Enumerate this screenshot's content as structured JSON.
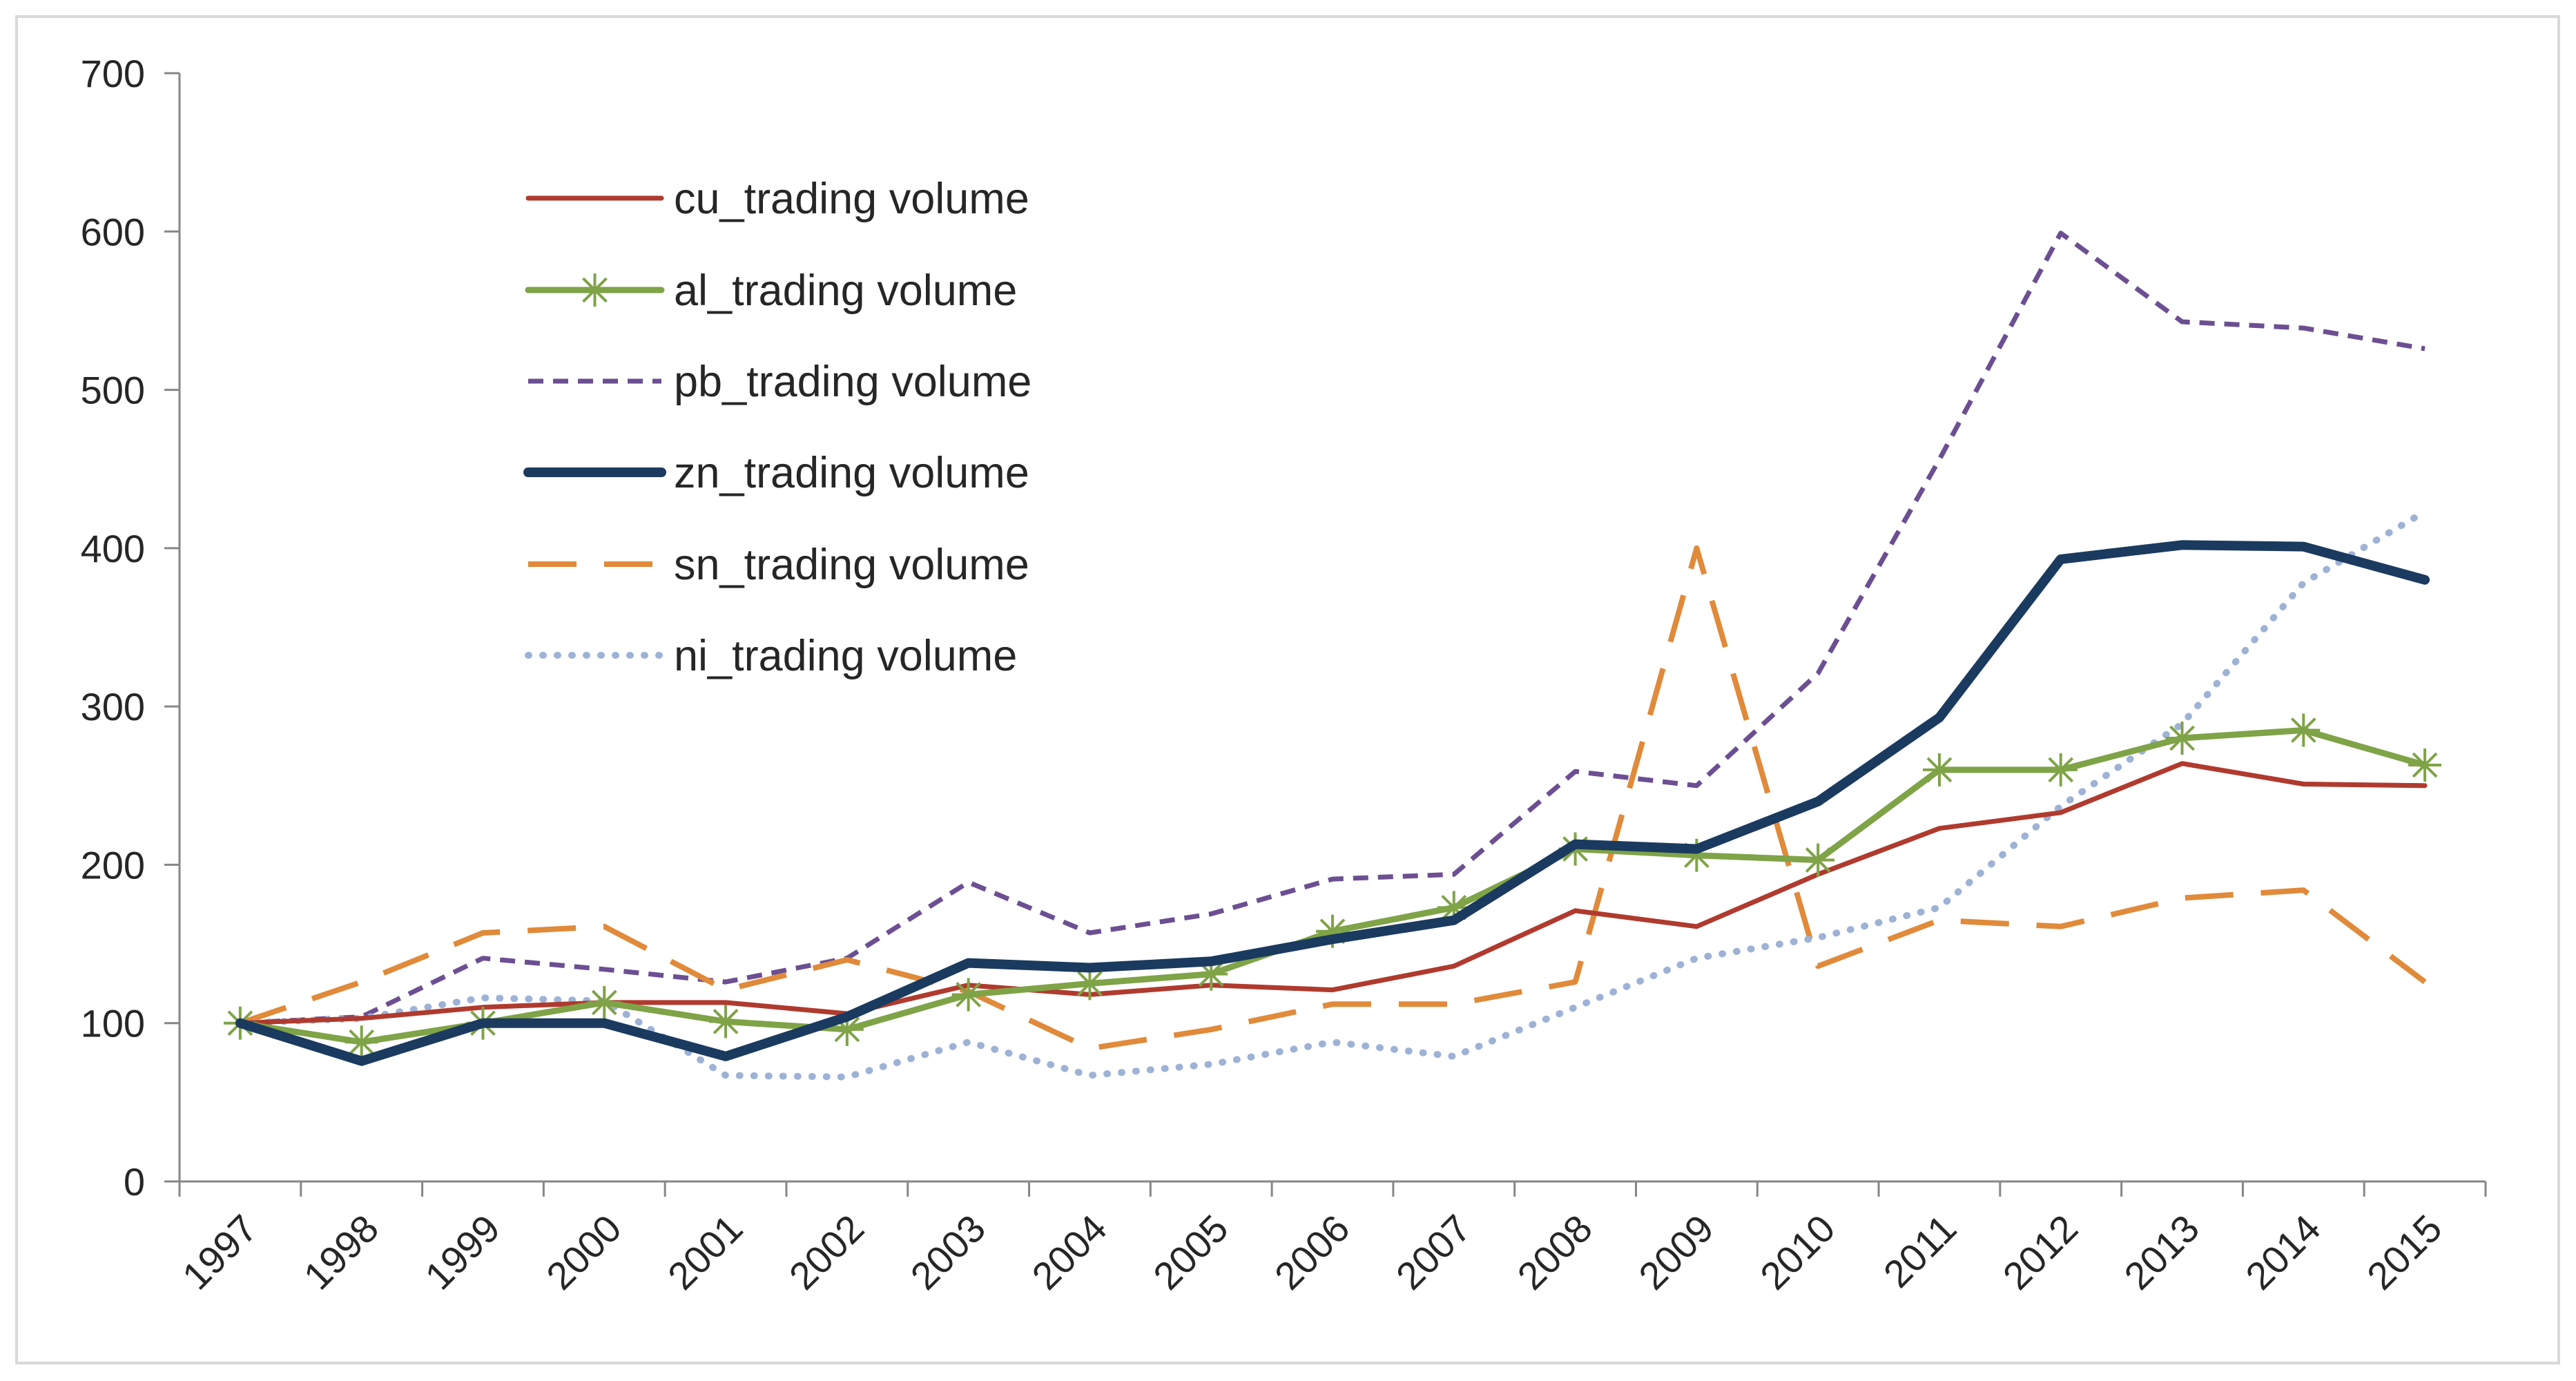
{
  "chart_data": {
    "type": "line",
    "title": "",
    "xlabel": "",
    "ylabel": "",
    "ylim": [
      0,
      700
    ],
    "yticks": [
      0,
      100,
      200,
      300,
      400,
      500,
      600,
      700
    ],
    "categories": [
      "1997",
      "1998",
      "1999",
      "2000",
      "2001",
      "2002",
      "2003",
      "2004",
      "2005",
      "2006",
      "2007",
      "2008",
      "2009",
      "2010",
      "2011",
      "2012",
      "2013",
      "2014",
      "2015"
    ],
    "grid": false,
    "legend_position": "top-left",
    "series": [
      {
        "name": "cu_trading volume",
        "color": "#b03a2e",
        "style": "solid",
        "values": [
          100,
          103,
          110,
          113,
          113,
          106,
          124,
          118,
          124,
          121,
          136,
          171,
          161,
          194,
          223,
          233,
          264,
          251,
          250
        ]
      },
      {
        "name": "al_trading volume",
        "color": "#7fa347",
        "style": "solid-star",
        "values": [
          100,
          88,
          100,
          113,
          101,
          96,
          118,
          125,
          131,
          158,
          173,
          210,
          206,
          203,
          260,
          260,
          280,
          285,
          263
        ]
      },
      {
        "name": "pb_trading volume",
        "color": "#6c4f92",
        "style": "dash-short",
        "values": [
          100,
          104,
          141,
          134,
          126,
          141,
          189,
          157,
          169,
          191,
          194,
          259,
          250,
          321,
          456,
          599,
          543,
          539,
          526
        ]
      },
      {
        "name": "zn_trading volume",
        "color": "#1b3a5f",
        "style": "solid-thick",
        "values": [
          100,
          76,
          100,
          100,
          79,
          104,
          138,
          135,
          139,
          153,
          165,
          213,
          210,
          240,
          293,
          393,
          402,
          401,
          380
        ]
      },
      {
        "name": "sn_trading volume",
        "color": "#e08a3a",
        "style": "dash-long",
        "values": [
          100,
          126,
          157,
          161,
          121,
          140,
          120,
          84,
          96,
          112,
          112,
          126,
          400,
          136,
          165,
          161,
          179,
          184,
          126
        ]
      },
      {
        "name": "ni_trading volume",
        "color": "#9eb2d6",
        "style": "dot",
        "values": [
          100,
          103,
          116,
          114,
          67,
          66,
          88,
          67,
          74,
          88,
          79,
          110,
          141,
          154,
          173,
          237,
          289,
          378,
          423
        ]
      }
    ]
  }
}
